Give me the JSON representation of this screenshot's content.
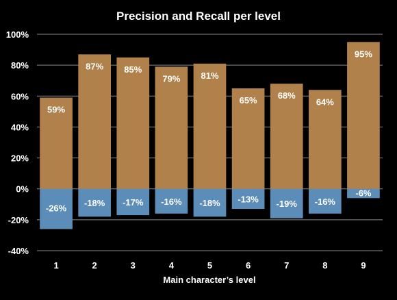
{
  "chart_data": {
    "type": "bar",
    "title": "Precision and Recall per level",
    "xlabel": "Main character’s level",
    "ylabel": "",
    "categories": [
      "1",
      "2",
      "3",
      "4",
      "5",
      "6",
      "7",
      "8",
      "9"
    ],
    "series": [
      {
        "values": [
          59,
          87,
          85,
          79,
          81,
          65,
          68,
          64,
          95
        ],
        "color": "#B0814A",
        "labels": [
          "59%",
          "87%",
          "85%",
          "79%",
          "81%",
          "65%",
          "68%",
          "64%",
          "95%"
        ]
      },
      {
        "values": [
          -26,
          -18,
          -17,
          -16,
          -18,
          -13,
          -19,
          -16,
          -6
        ],
        "color": "#5C8DB8",
        "labels": [
          "-26%",
          "-18%",
          "-17%",
          "-16%",
          "-18%",
          "-13%",
          "-19%",
          "-16%",
          "-6%"
        ]
      }
    ],
    "ylim": [
      -40,
      100
    ],
    "yticks": [
      -40,
      -20,
      0,
      20,
      40,
      60,
      80,
      100
    ],
    "ytick_labels": [
      "-40%",
      "-20%",
      "0%",
      "20%",
      "40%",
      "60%",
      "80%",
      "100%"
    ],
    "grid": true,
    "legend": "none",
    "background": "#000000",
    "text_color": "#FFFFFF"
  }
}
